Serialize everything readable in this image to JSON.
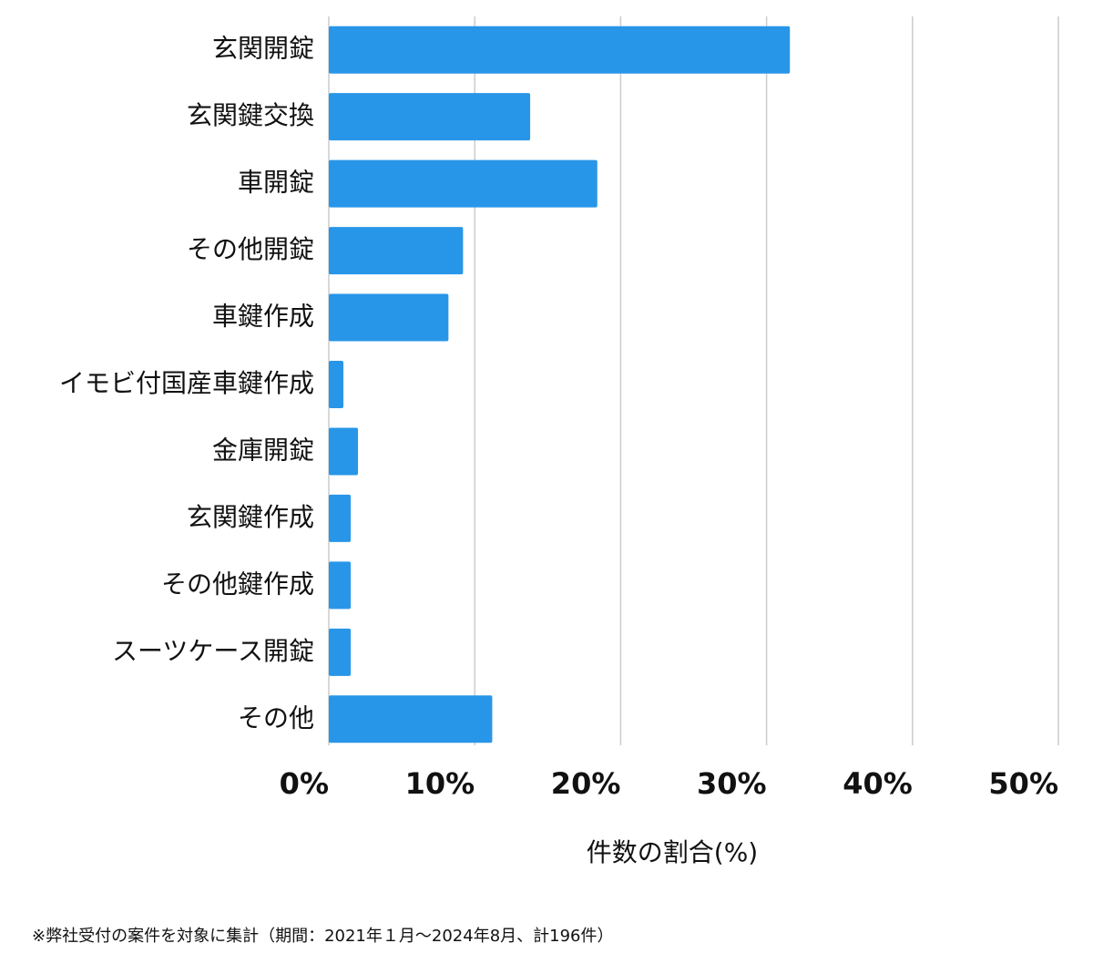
{
  "chart_data": {
    "type": "barh",
    "categories": [
      "玄関開錠",
      "玄関鍵交換",
      "車開錠",
      "その他開錠",
      "車鍵作成",
      "イモビ付国産車鍵作成",
      "金庫開錠",
      "玄関鍵作成",
      "その他鍵作成",
      "スーツケース開錠",
      "その他"
    ],
    "values": [
      31.6,
      13.8,
      18.4,
      9.2,
      8.2,
      1.0,
      2.0,
      1.5,
      1.5,
      1.5,
      11.2
    ],
    "color": "#2896e8",
    "xlim": [
      0,
      50
    ],
    "xticks": [
      {
        "value": 0,
        "label": "0%"
      },
      {
        "value": 10,
        "label": "10%"
      },
      {
        "value": 20,
        "label": "20%"
      },
      {
        "value": 30,
        "label": "30%"
      },
      {
        "value": 40,
        "label": "40%"
      },
      {
        "value": 50,
        "label": "50%"
      }
    ],
    "grid": true,
    "xlabel": "件数の割合(%)",
    "note": "※弊社受付の案件を対象に集計（期間：2021年１月〜2024年8月、計196件）"
  }
}
